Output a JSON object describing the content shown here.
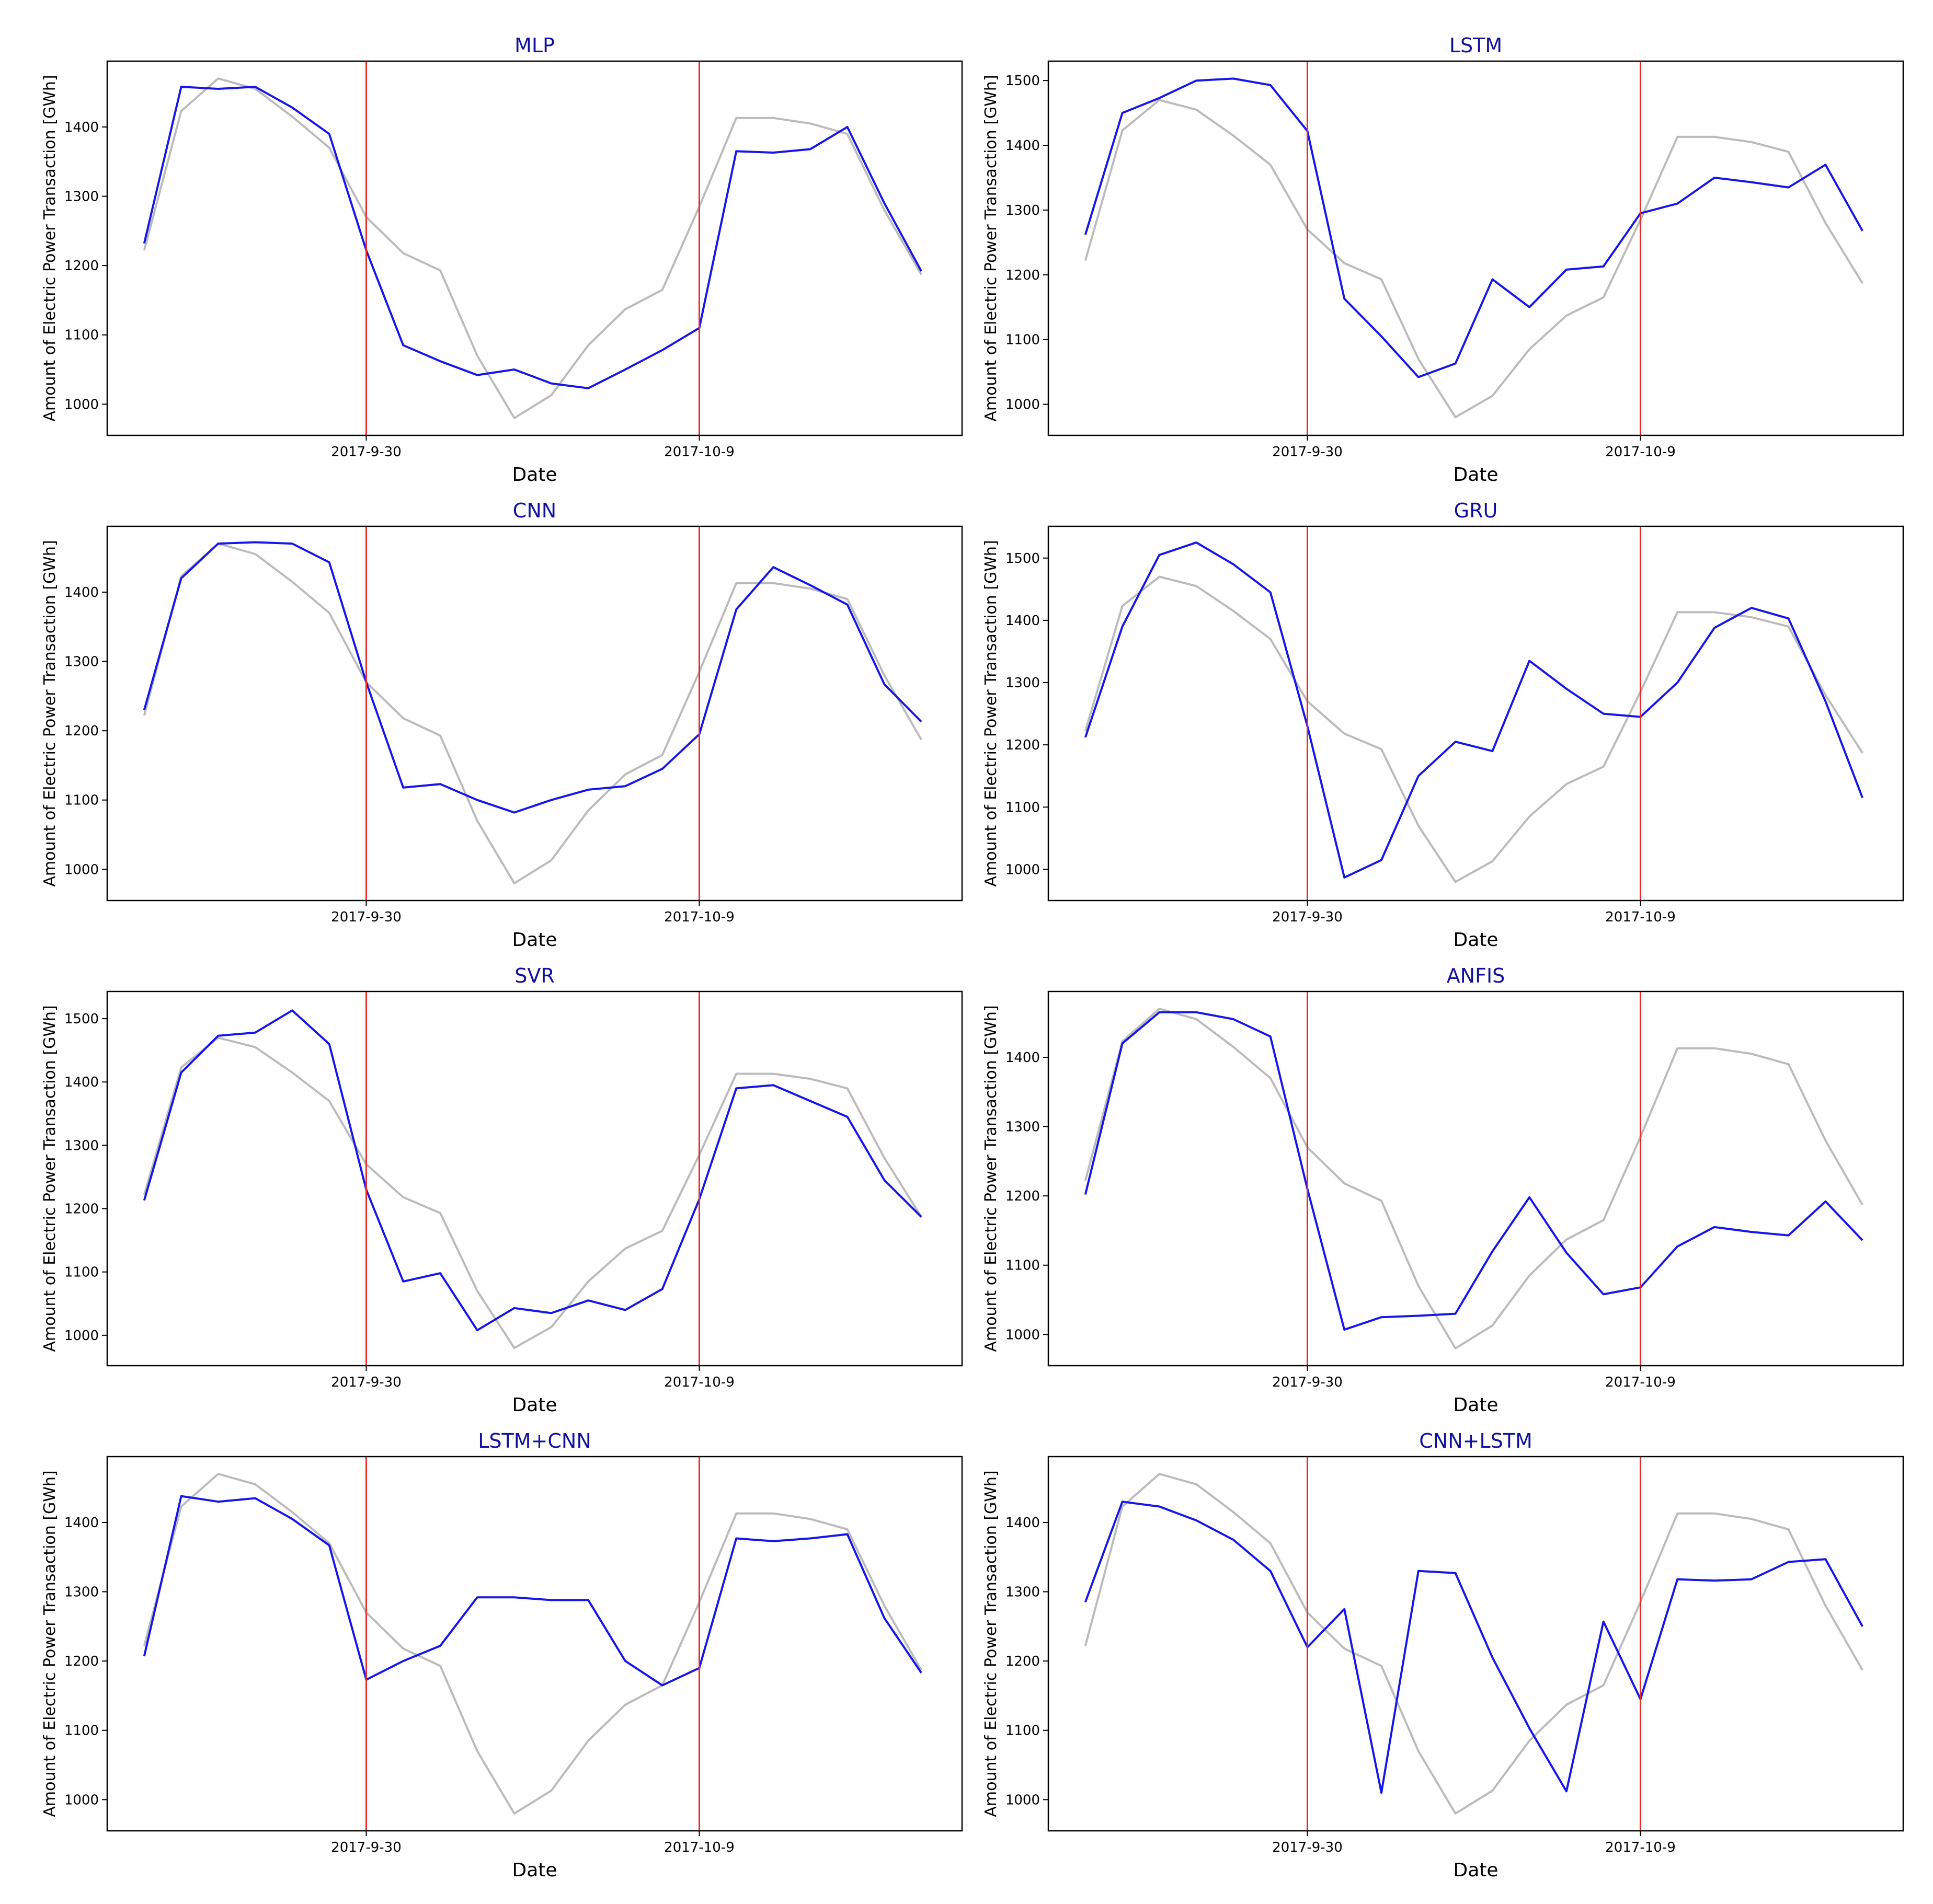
{
  "chart_data": [
    {
      "type": "line",
      "title": "MLP",
      "xlabel": "Date",
      "ylabel": "Amount of Electric Power Transaction [GWh]",
      "x": [
        1,
        2,
        3,
        4,
        5,
        6,
        7,
        8,
        9,
        10,
        11,
        12,
        13,
        14,
        15,
        16,
        17,
        18,
        19,
        20,
        21,
        22
      ],
      "xticks": [
        {
          "x": 7,
          "label": "2017-9-30"
        },
        {
          "x": 16,
          "label": "2017-10-9"
        }
      ],
      "xlim": [
        0,
        23.1
      ],
      "ylim": [
        955,
        1495
      ],
      "yticks": [
        1000,
        1100,
        1200,
        1300,
        1400
      ],
      "vlines": [
        7,
        16
      ],
      "series": [
        {
          "color": "#bbbbbb",
          "values": [
            1222,
            1423,
            1470,
            1455,
            1415,
            1370,
            1270,
            1218,
            1193,
            1070,
            980,
            1013,
            1085,
            1137,
            1165,
            1285,
            1413,
            1413,
            1405,
            1390,
            1280,
            1187
          ]
        },
        {
          "color": "#1515f0",
          "values": [
            1232,
            1458,
            1455,
            1458,
            1428,
            1390,
            1222,
            1085,
            1062,
            1042,
            1050,
            1030,
            1023,
            1050,
            1078,
            1110,
            1365,
            1363,
            1368,
            1400,
            1290,
            1192
          ]
        }
      ]
    },
    {
      "type": "line",
      "title": "LSTM",
      "xlabel": "Date",
      "ylabel": "Amount of Electric Power Transaction [GWh]",
      "x": [
        1,
        2,
        3,
        4,
        5,
        6,
        7,
        8,
        9,
        10,
        11,
        12,
        13,
        14,
        15,
        16,
        17,
        18,
        19,
        20,
        21,
        22
      ],
      "xticks": [
        {
          "x": 7,
          "label": "2017-9-30"
        },
        {
          "x": 16,
          "label": "2017-10-9"
        }
      ],
      "xlim": [
        0,
        23.1
      ],
      "ylim": [
        952,
        1530
      ],
      "yticks": [
        1000,
        1100,
        1200,
        1300,
        1400,
        1500
      ],
      "vlines": [
        7,
        16
      ],
      "series": [
        {
          "color": "#bbbbbb",
          "values": [
            1222,
            1423,
            1470,
            1455,
            1415,
            1370,
            1270,
            1218,
            1193,
            1070,
            980,
            1013,
            1085,
            1137,
            1165,
            1285,
            1413,
            1413,
            1405,
            1390,
            1280,
            1187
          ]
        },
        {
          "color": "#1515f0",
          "values": [
            1262,
            1450,
            1473,
            1500,
            1503,
            1493,
            1422,
            1163,
            1105,
            1042,
            1063,
            1193,
            1150,
            1208,
            1213,
            1295,
            1310,
            1350,
            1343,
            1335,
            1370,
            1268
          ]
        }
      ]
    },
    {
      "type": "line",
      "title": "CNN",
      "xlabel": "Date",
      "ylabel": "Amount of Electric Power Transaction [GWh]",
      "x": [
        1,
        2,
        3,
        4,
        5,
        6,
        7,
        8,
        9,
        10,
        11,
        12,
        13,
        14,
        15,
        16,
        17,
        18,
        19,
        20,
        21,
        22
      ],
      "xticks": [
        {
          "x": 7,
          "label": "2017-9-30"
        },
        {
          "x": 16,
          "label": "2017-10-9"
        }
      ],
      "xlim": [
        0,
        23.1
      ],
      "ylim": [
        955,
        1495
      ],
      "yticks": [
        1000,
        1100,
        1200,
        1300,
        1400
      ],
      "vlines": [
        7,
        16
      ],
      "series": [
        {
          "color": "#bbbbbb",
          "values": [
            1222,
            1423,
            1470,
            1455,
            1415,
            1370,
            1270,
            1218,
            1193,
            1070,
            980,
            1013,
            1085,
            1137,
            1165,
            1285,
            1413,
            1413,
            1405,
            1390,
            1280,
            1187
          ]
        },
        {
          "color": "#1515f0",
          "values": [
            1230,
            1420,
            1470,
            1472,
            1470,
            1443,
            1270,
            1118,
            1123,
            1100,
            1082,
            1100,
            1115,
            1120,
            1145,
            1195,
            1375,
            1436,
            1410,
            1382,
            1267,
            1213
          ]
        }
      ]
    },
    {
      "type": "line",
      "title": "GRU",
      "xlabel": "Date",
      "ylabel": "Amount of Electric Power Transaction [GWh]",
      "x": [
        1,
        2,
        3,
        4,
        5,
        6,
        7,
        8,
        9,
        10,
        11,
        12,
        13,
        14,
        15,
        16,
        17,
        18,
        19,
        20,
        21,
        22
      ],
      "xticks": [
        {
          "x": 7,
          "label": "2017-9-30"
        },
        {
          "x": 16,
          "label": "2017-10-9"
        }
      ],
      "xlim": [
        0,
        23.1
      ],
      "ylim": [
        950,
        1551
      ],
      "yticks": [
        1000,
        1100,
        1200,
        1300,
        1400,
        1500
      ],
      "vlines": [
        7,
        16
      ],
      "series": [
        {
          "color": "#bbbbbb",
          "values": [
            1222,
            1423,
            1470,
            1455,
            1415,
            1370,
            1270,
            1218,
            1193,
            1070,
            980,
            1013,
            1085,
            1137,
            1165,
            1285,
            1413,
            1413,
            1405,
            1390,
            1280,
            1187
          ]
        },
        {
          "color": "#1515f0",
          "values": [
            1212,
            1390,
            1505,
            1525,
            1490,
            1445,
            1230,
            987,
            1015,
            1150,
            1205,
            1190,
            1335,
            1290,
            1250,
            1245,
            1300,
            1388,
            1420,
            1403,
            1270,
            1115
          ]
        }
      ]
    },
    {
      "type": "line",
      "title": "SVR",
      "xlabel": "Date",
      "ylabel": "Amount of Electric Power Transaction [GWh]",
      "x": [
        1,
        2,
        3,
        4,
        5,
        6,
        7,
        8,
        9,
        10,
        11,
        12,
        13,
        14,
        15,
        16,
        17,
        18,
        19,
        20,
        21,
        22
      ],
      "xticks": [
        {
          "x": 7,
          "label": "2017-9-30"
        },
        {
          "x": 16,
          "label": "2017-10-9"
        }
      ],
      "xlim": [
        0,
        23.1
      ],
      "ylim": [
        952,
        1543
      ],
      "yticks": [
        1000,
        1100,
        1200,
        1300,
        1400,
        1500
      ],
      "vlines": [
        7,
        16
      ],
      "series": [
        {
          "color": "#bbbbbb",
          "values": [
            1222,
            1423,
            1470,
            1455,
            1415,
            1370,
            1270,
            1218,
            1193,
            1070,
            980,
            1013,
            1085,
            1137,
            1165,
            1285,
            1413,
            1413,
            1405,
            1390,
            1280,
            1187
          ]
        },
        {
          "color": "#1515f0",
          "values": [
            1213,
            1415,
            1473,
            1478,
            1513,
            1460,
            1230,
            1085,
            1098,
            1008,
            1043,
            1035,
            1055,
            1040,
            1073,
            1215,
            1390,
            1395,
            1370,
            1345,
            1245,
            1187
          ]
        }
      ]
    },
    {
      "type": "line",
      "title": "ANFIS",
      "xlabel": "Date",
      "ylabel": "Amount of Electric Power Transaction [GWh]",
      "x": [
        1,
        2,
        3,
        4,
        5,
        6,
        7,
        8,
        9,
        10,
        11,
        12,
        13,
        14,
        15,
        16,
        17,
        18,
        19,
        20,
        21,
        22
      ],
      "xticks": [
        {
          "x": 7,
          "label": "2017-9-30"
        },
        {
          "x": 16,
          "label": "2017-10-9"
        }
      ],
      "xlim": [
        0,
        23.1
      ],
      "ylim": [
        955,
        1495
      ],
      "yticks": [
        1000,
        1100,
        1200,
        1300,
        1400
      ],
      "vlines": [
        7,
        16
      ],
      "series": [
        {
          "color": "#bbbbbb",
          "values": [
            1222,
            1423,
            1470,
            1455,
            1415,
            1370,
            1270,
            1218,
            1193,
            1070,
            980,
            1013,
            1085,
            1137,
            1165,
            1285,
            1413,
            1413,
            1405,
            1390,
            1280,
            1187
          ]
        },
        {
          "color": "#1515f0",
          "values": [
            1202,
            1420,
            1465,
            1465,
            1455,
            1430,
            1210,
            1007,
            1025,
            1027,
            1030,
            1120,
            1198,
            1118,
            1058,
            1068,
            1127,
            1155,
            1148,
            1143,
            1192,
            1136
          ]
        }
      ]
    },
    {
      "type": "line",
      "title": "LSTM+CNN",
      "xlabel": "Date",
      "ylabel": "Amount of Electric Power Transaction [GWh]",
      "x": [
        1,
        2,
        3,
        4,
        5,
        6,
        7,
        8,
        9,
        10,
        11,
        12,
        13,
        14,
        15,
        16,
        17,
        18,
        19,
        20,
        21,
        22
      ],
      "xticks": [
        {
          "x": 7,
          "label": "2017-9-30"
        },
        {
          "x": 16,
          "label": "2017-10-9"
        }
      ],
      "xlim": [
        0,
        23.1
      ],
      "ylim": [
        955,
        1495
      ],
      "yticks": [
        1000,
        1100,
        1200,
        1300,
        1400
      ],
      "vlines": [
        7,
        16
      ],
      "series": [
        {
          "color": "#bbbbbb",
          "values": [
            1222,
            1423,
            1470,
            1455,
            1415,
            1370,
            1270,
            1218,
            1193,
            1070,
            980,
            1013,
            1085,
            1137,
            1165,
            1285,
            1413,
            1413,
            1405,
            1390,
            1280,
            1187
          ]
        },
        {
          "color": "#1515f0",
          "values": [
            1207,
            1438,
            1430,
            1435,
            1405,
            1367,
            1173,
            1200,
            1222,
            1292,
            1292,
            1288,
            1288,
            1200,
            1165,
            1190,
            1377,
            1373,
            1377,
            1383,
            1262,
            1183
          ]
        }
      ]
    },
    {
      "type": "line",
      "title": "CNN+LSTM",
      "xlabel": "Date",
      "ylabel": "Amount of Electric Power Transaction [GWh]",
      "x": [
        1,
        2,
        3,
        4,
        5,
        6,
        7,
        8,
        9,
        10,
        11,
        12,
        13,
        14,
        15,
        16,
        17,
        18,
        19,
        20,
        21,
        22
      ],
      "xticks": [
        {
          "x": 7,
          "label": "2017-9-30"
        },
        {
          "x": 16,
          "label": "2017-10-9"
        }
      ],
      "xlim": [
        0,
        23.1
      ],
      "ylim": [
        955,
        1495
      ],
      "yticks": [
        1000,
        1100,
        1200,
        1300,
        1400
      ],
      "vlines": [
        7,
        16
      ],
      "series": [
        {
          "color": "#bbbbbb",
          "values": [
            1222,
            1423,
            1470,
            1455,
            1415,
            1370,
            1270,
            1218,
            1193,
            1070,
            980,
            1013,
            1085,
            1137,
            1165,
            1285,
            1413,
            1413,
            1405,
            1390,
            1280,
            1187
          ]
        },
        {
          "color": "#1515f0",
          "values": [
            1285,
            1430,
            1423,
            1403,
            1375,
            1330,
            1220,
            1275,
            1010,
            1330,
            1327,
            1205,
            1103,
            1012,
            1257,
            1145,
            1318,
            1316,
            1318,
            1343,
            1347,
            1250
          ]
        }
      ]
    }
  ],
  "style": {
    "vline_color": "#ee2a2a",
    "axis_color": "#000000",
    "title_color": "#1010a0"
  }
}
